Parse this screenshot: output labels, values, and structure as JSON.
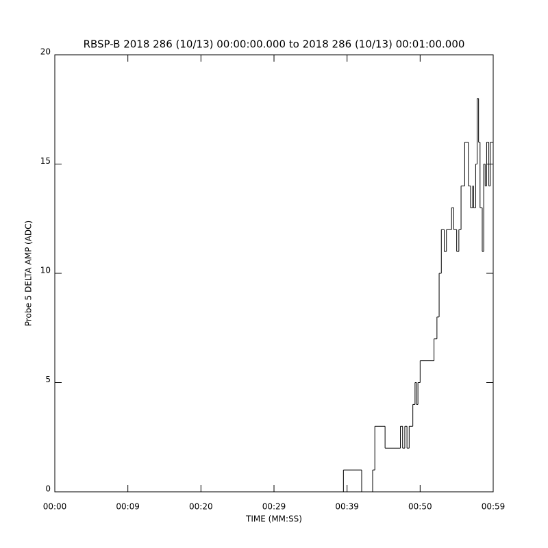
{
  "chart_data": {
    "type": "step",
    "title": "RBSP-B 2018 286 (10/13) 00:00:00.000 to 2018 286 (10/13) 00:01:00.000",
    "xlabel": "TIME (MM:SS)",
    "ylabel": "Probe 5 DELTA AMP (ADC)",
    "color": "#000000",
    "xlim": [
      0,
      60
    ],
    "xticks": [
      {
        "value": 0,
        "label": "00:00"
      },
      {
        "value": 10,
        "label": "00:09"
      },
      {
        "value": 20,
        "label": "00:20"
      },
      {
        "value": 30,
        "label": "00:29"
      },
      {
        "value": 40,
        "label": "00:39"
      },
      {
        "value": 50,
        "label": "00:50"
      },
      {
        "value": 60,
        "label": "00:59"
      }
    ],
    "ylim": [
      0,
      20
    ],
    "yticks": [
      0,
      5,
      10,
      15,
      20
    ],
    "x": [
      0,
      39.5,
      42,
      43.5,
      43.8,
      45.2,
      47.3,
      47.6,
      47.9,
      48.2,
      48.5,
      49.0,
      49.3,
      49.5,
      49.7,
      50.0,
      51.9,
      52.3,
      52.6,
      52.9,
      53.3,
      53.6,
      54.3,
      54.6,
      55.0,
      55.3,
      55.6,
      56.1,
      56.6,
      56.9,
      57.2,
      57.3,
      57.6,
      57.8,
      58.0,
      58.2,
      58.5,
      58.7,
      58.9,
      59.1,
      59.4,
      59.6
    ],
    "values": [
      0,
      1,
      0,
      1,
      3,
      2,
      3,
      2,
      3,
      2,
      3,
      4,
      5,
      4,
      5,
      6,
      7,
      8,
      10,
      12,
      11,
      12,
      13,
      12,
      11,
      12,
      14,
      16,
      14,
      13,
      14,
      13,
      15,
      18,
      16,
      13,
      11,
      15,
      14,
      16,
      14,
      16
    ]
  }
}
